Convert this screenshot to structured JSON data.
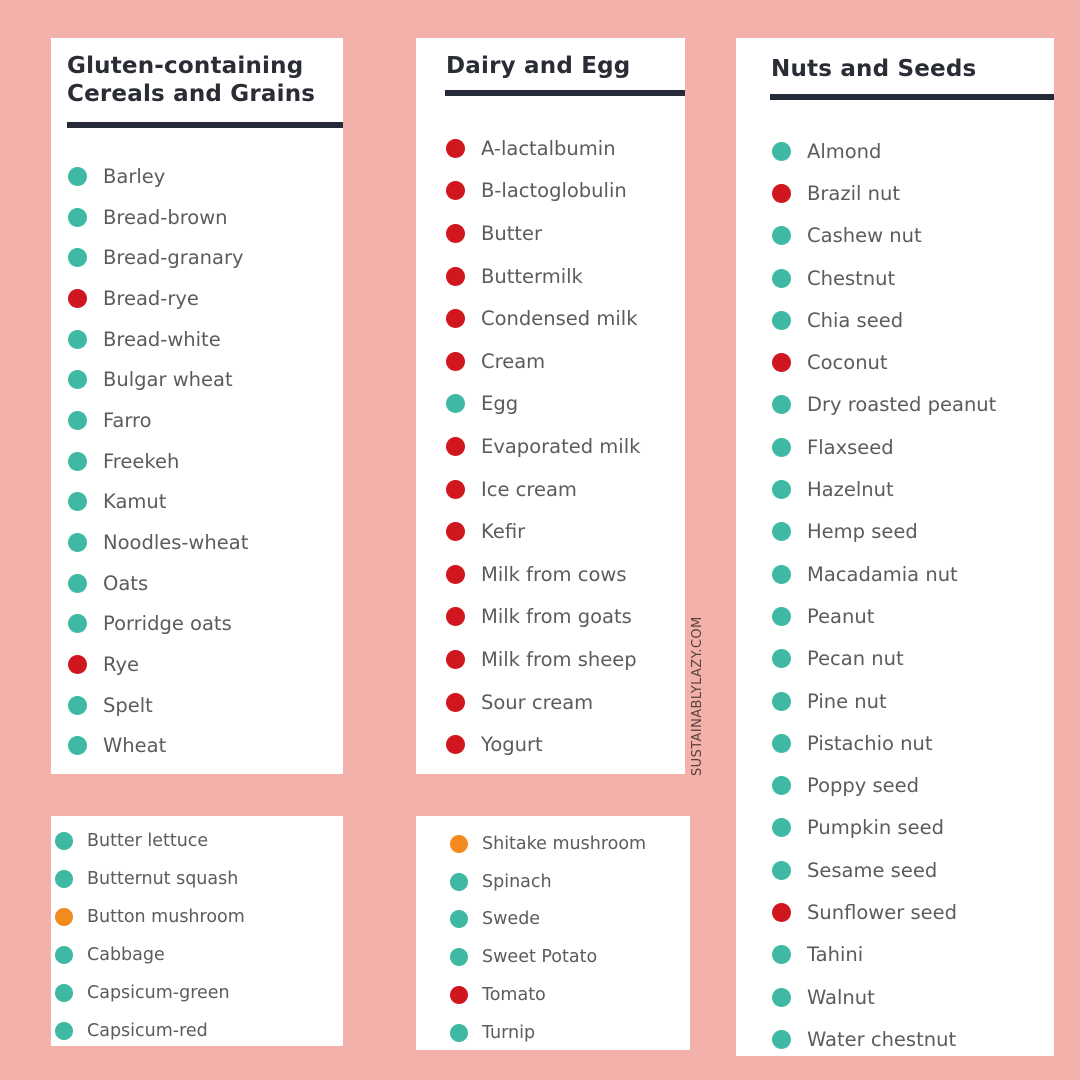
{
  "colors": {
    "background": "#f2b1aa",
    "safe": "#3fb9a3",
    "avoid": "#d0161f",
    "caution": "#f28a1e",
    "rule": "#252a38"
  },
  "watermark": "SUSTAINABLYLAZY.COM",
  "cards": {
    "gluten": {
      "title_line1": "Gluten-containing",
      "title_line2": "Cereals and Grains",
      "items": [
        {
          "label": "Barley",
          "status": "safe"
        },
        {
          "label": "Bread-brown",
          "status": "safe"
        },
        {
          "label": "Bread-granary",
          "status": "safe"
        },
        {
          "label": "Bread-rye",
          "status": "avoid"
        },
        {
          "label": "Bread-white",
          "status": "safe"
        },
        {
          "label": "Bulgar wheat",
          "status": "safe"
        },
        {
          "label": "Farro",
          "status": "safe"
        },
        {
          "label": "Freekeh",
          "status": "safe"
        },
        {
          "label": "Kamut",
          "status": "safe"
        },
        {
          "label": "Noodles-wheat",
          "status": "safe"
        },
        {
          "label": "Oats",
          "status": "safe"
        },
        {
          "label": "Porridge oats",
          "status": "safe"
        },
        {
          "label": "Rye",
          "status": "avoid"
        },
        {
          "label": "Spelt",
          "status": "safe"
        },
        {
          "label": "Wheat",
          "status": "safe"
        }
      ]
    },
    "dairy": {
      "title": "Dairy and Egg",
      "items": [
        {
          "label": "A-lactalbumin",
          "status": "avoid"
        },
        {
          "label": "B-lactoglobulin",
          "status": "avoid"
        },
        {
          "label": "Butter",
          "status": "avoid"
        },
        {
          "label": "Buttermilk",
          "status": "avoid"
        },
        {
          "label": "Condensed milk",
          "status": "avoid"
        },
        {
          "label": "Cream",
          "status": "avoid"
        },
        {
          "label": "Egg",
          "status": "safe"
        },
        {
          "label": "Evaporated milk",
          "status": "avoid"
        },
        {
          "label": "Ice cream",
          "status": "avoid"
        },
        {
          "label": "Kefir",
          "status": "avoid"
        },
        {
          "label": "Milk from cows",
          "status": "avoid"
        },
        {
          "label": "Milk from goats",
          "status": "avoid"
        },
        {
          "label": "Milk from sheep",
          "status": "avoid"
        },
        {
          "label": "Sour cream",
          "status": "avoid"
        },
        {
          "label": "Yogurt",
          "status": "avoid"
        }
      ]
    },
    "nuts": {
      "title": "Nuts and Seeds",
      "items": [
        {
          "label": "Almond",
          "status": "safe"
        },
        {
          "label": "Brazil nut",
          "status": "avoid"
        },
        {
          "label": "Cashew nut",
          "status": "safe"
        },
        {
          "label": "Chestnut",
          "status": "safe"
        },
        {
          "label": "Chia seed",
          "status": "safe"
        },
        {
          "label": "Coconut",
          "status": "avoid"
        },
        {
          "label": "Dry roasted peanut",
          "status": "safe"
        },
        {
          "label": "Flaxseed",
          "status": "safe"
        },
        {
          "label": "Hazelnut",
          "status": "safe"
        },
        {
          "label": "Hemp seed",
          "status": "safe"
        },
        {
          "label": "Macadamia nut",
          "status": "safe"
        },
        {
          "label": "Peanut",
          "status": "safe"
        },
        {
          "label": "Pecan nut",
          "status": "safe"
        },
        {
          "label": "Pine nut",
          "status": "safe"
        },
        {
          "label": "Pistachio nut",
          "status": "safe"
        },
        {
          "label": "Poppy seed",
          "status": "safe"
        },
        {
          "label": "Pumpkin seed",
          "status": "safe"
        },
        {
          "label": "Sesame seed",
          "status": "safe"
        },
        {
          "label": "Sunflower seed",
          "status": "avoid"
        },
        {
          "label": "Tahini",
          "status": "safe"
        },
        {
          "label": "Walnut",
          "status": "safe"
        },
        {
          "label": "Water chestnut",
          "status": "safe"
        }
      ]
    },
    "veg_left": {
      "items": [
        {
          "label": "Butter lettuce",
          "status": "safe"
        },
        {
          "label": "Butternut squash",
          "status": "safe"
        },
        {
          "label": "Button mushroom",
          "status": "caution"
        },
        {
          "label": "Cabbage",
          "status": "safe"
        },
        {
          "label": "Capsicum-green",
          "status": "safe"
        },
        {
          "label": "Capsicum-red",
          "status": "safe"
        }
      ]
    },
    "veg_mid": {
      "items": [
        {
          "label": "Shitake mushroom",
          "status": "caution"
        },
        {
          "label": "Spinach",
          "status": "safe"
        },
        {
          "label": "Swede",
          "status": "safe"
        },
        {
          "label": "Sweet Potato",
          "status": "safe"
        },
        {
          "label": "Tomato",
          "status": "avoid"
        },
        {
          "label": "Turnip",
          "status": "safe"
        }
      ]
    }
  }
}
